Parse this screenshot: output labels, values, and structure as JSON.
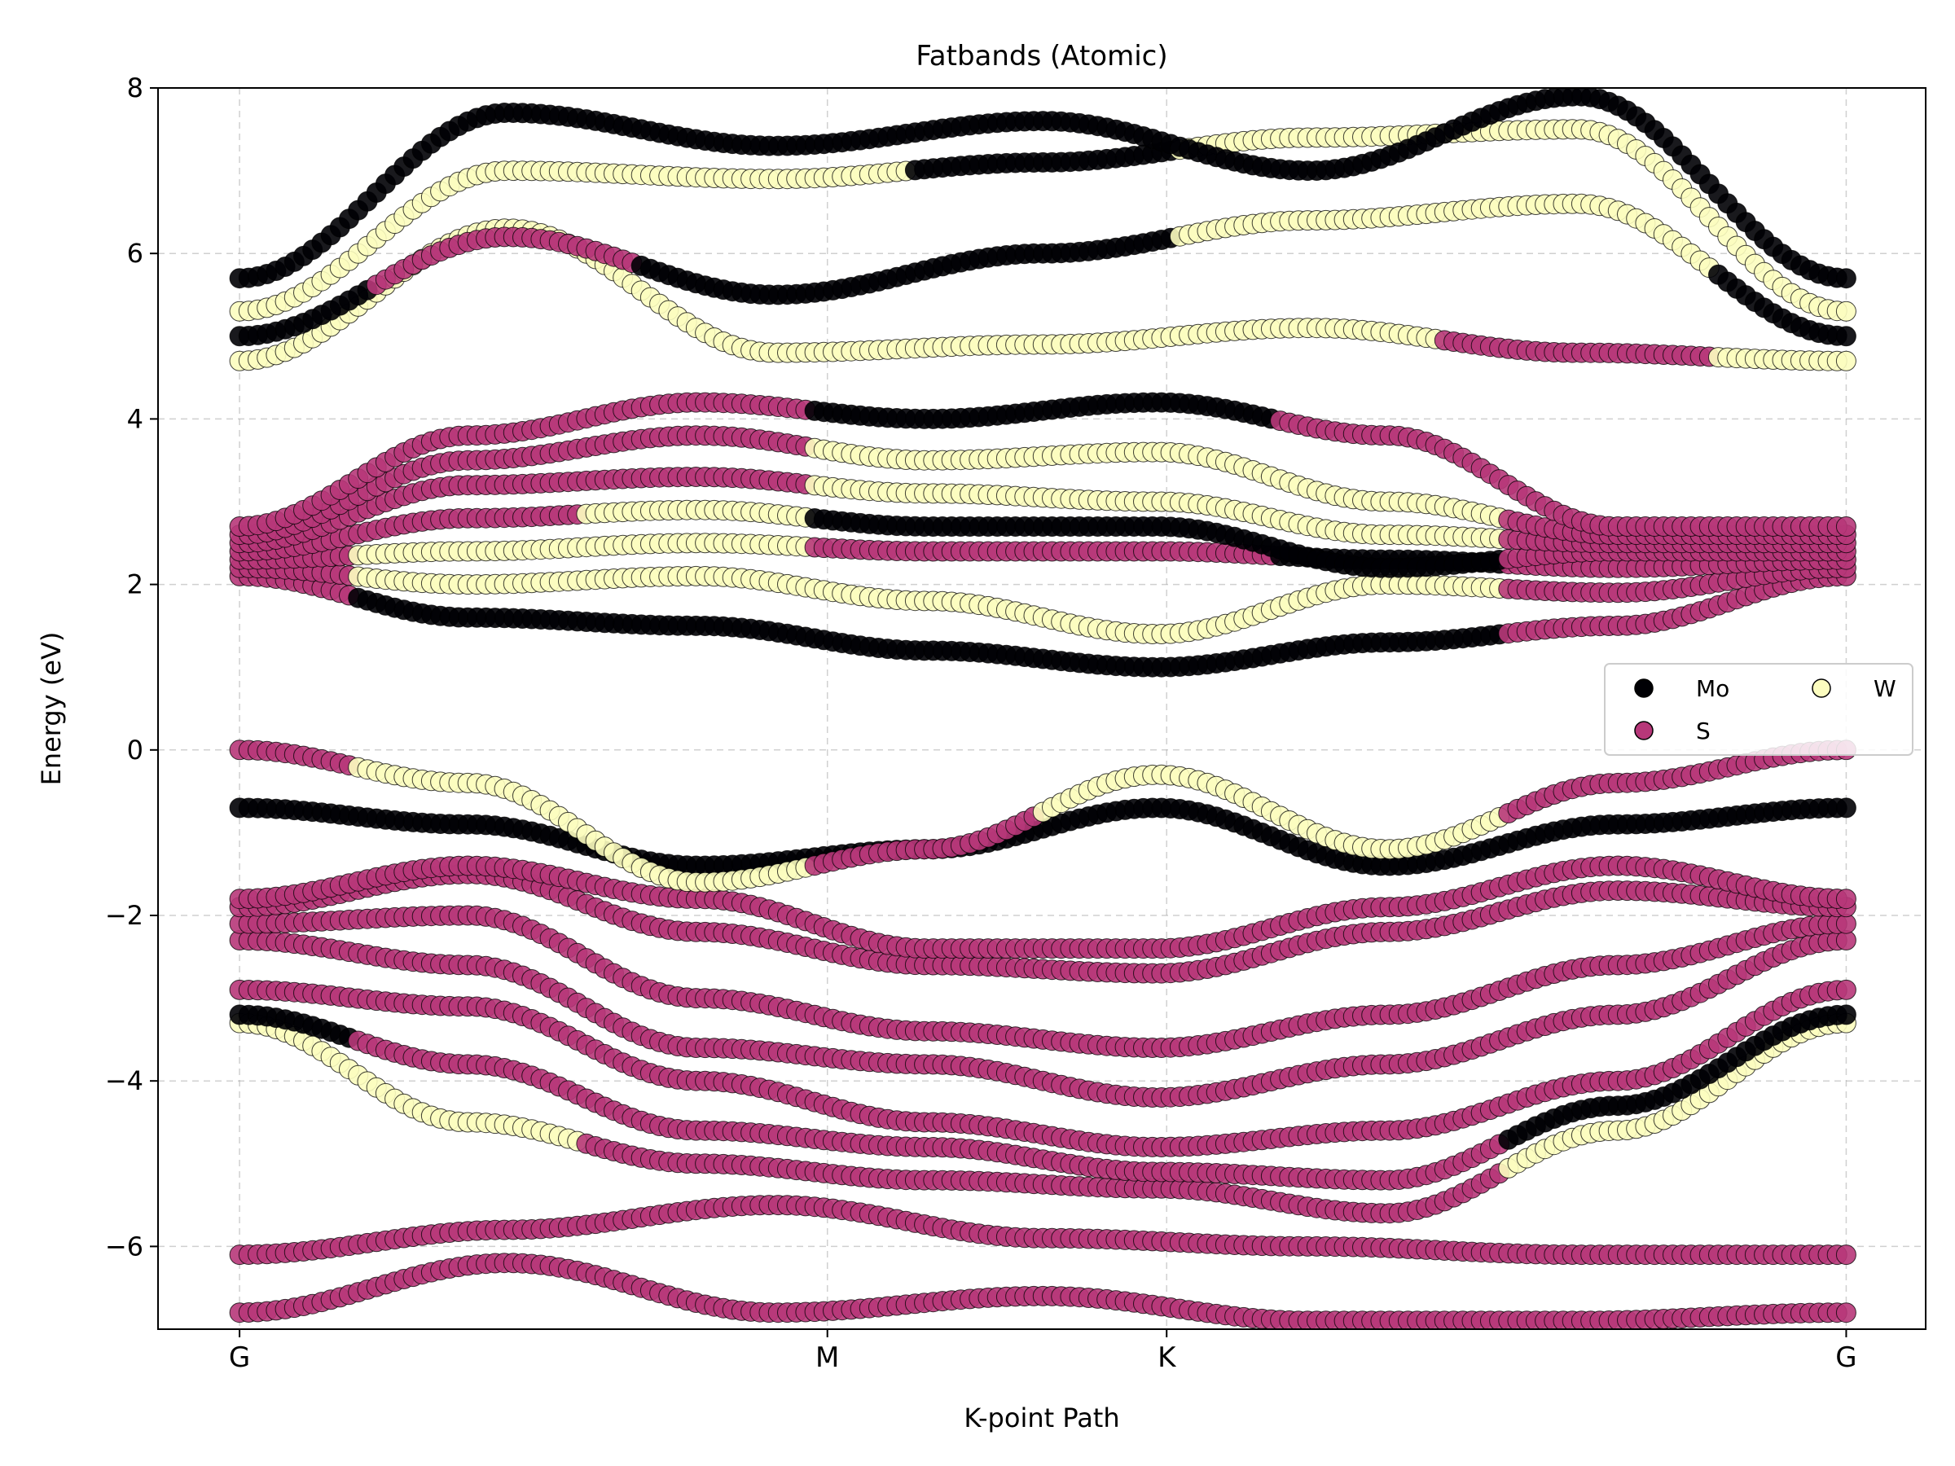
{
  "chart_data": {
    "type": "scatter",
    "title": "Fatbands (Atomic)",
    "xlabel": "K-point Path",
    "ylabel": "Energy (eV)",
    "ylim": [
      -7,
      8
    ],
    "y_ticks": [
      -6,
      -4,
      -2,
      0,
      2,
      4,
      6,
      8
    ],
    "y_tick_labels": [
      "−6",
      "−4",
      "−2",
      "0",
      "2",
      "4",
      "6",
      "8"
    ],
    "k_path": [
      {
        "label": "G",
        "k": 0.0
      },
      {
        "label": "M",
        "k": 0.577
      },
      {
        "label": "K",
        "k": 0.91
      },
      {
        "label": "G",
        "k": 1.577
      }
    ],
    "xlim": [
      -0.08,
      1.655
    ],
    "grid": true,
    "legend": {
      "position": "right",
      "columns": 2
    },
    "series": [
      {
        "name": "Mo",
        "color": "#000004"
      },
      {
        "name": "S",
        "color": "#b73779"
      },
      {
        "name": "W",
        "color": "#fcfdbf"
      }
    ],
    "bands": [
      {
        "e": [
          -6.8,
          -6.2,
          -6.8,
          -6.6,
          -6.9,
          -6.9,
          -6.8
        ],
        "c": [
          "S",
          "S",
          "S",
          "S",
          "S",
          "S",
          "S"
        ]
      },
      {
        "e": [
          -6.1,
          -5.8,
          -5.5,
          -5.9,
          -6.0,
          -6.1,
          -6.1
        ],
        "c": [
          "S",
          "S",
          "S",
          "S",
          "S",
          "S",
          "S"
        ]
      },
      {
        "e": [
          -3.3,
          -4.5,
          -5.0,
          -5.2,
          -5.3,
          -5.6,
          -4.6,
          -3.3
        ],
        "c": [
          "W",
          "W",
          "S",
          "S",
          "S",
          "S",
          "W",
          "W"
        ]
      },
      {
        "e": [
          -3.2,
          -3.8,
          -4.6,
          -4.8,
          -5.1,
          -5.2,
          -4.3,
          -3.2
        ],
        "c": [
          "Mo",
          "S",
          "S",
          "S",
          "S",
          "S",
          "Mo",
          "Mo"
        ]
      },
      {
        "e": [
          -2.9,
          -3.1,
          -4.0,
          -4.5,
          -4.8,
          -4.6,
          -4.0,
          -2.9
        ],
        "c": [
          "S",
          "S",
          "S",
          "S",
          "S",
          "S",
          "S",
          "S"
        ]
      },
      {
        "e": [
          -2.3,
          -2.6,
          -3.6,
          -3.8,
          -4.2,
          -3.8,
          -3.2,
          -2.3
        ],
        "c": [
          "S",
          "S",
          "S",
          "S",
          "S",
          "S",
          "S",
          "S"
        ]
      },
      {
        "e": [
          -2.1,
          -2.0,
          -3.0,
          -3.4,
          -3.6,
          -3.2,
          -2.6,
          -2.1
        ],
        "c": [
          "S",
          "S",
          "S",
          "S",
          "S",
          "S",
          "S",
          "S"
        ]
      },
      {
        "e": [
          -1.9,
          -1.5,
          -2.2,
          -2.6,
          -2.7,
          -2.2,
          -1.7,
          -1.9
        ],
        "c": [
          "S",
          "S",
          "S",
          "S",
          "S",
          "S",
          "S",
          "S"
        ]
      },
      {
        "e": [
          -1.8,
          -1.4,
          -1.8,
          -2.4,
          -2.4,
          -1.9,
          -1.4,
          -1.8
        ],
        "c": [
          "S",
          "S",
          "S",
          "S",
          "S",
          "S",
          "S",
          "S"
        ]
      },
      {
        "e": [
          -0.7,
          -0.9,
          -1.4,
          -1.2,
          -0.7,
          -1.4,
          -0.9,
          -0.7
        ],
        "c": [
          "Mo",
          "Mo",
          "Mo",
          "Mo",
          "Mo",
          "Mo",
          "Mo",
          "Mo"
        ]
      },
      {
        "e": [
          0.0,
          -0.4,
          -1.6,
          -1.2,
          -0.3,
          -1.2,
          -0.4,
          0.0
        ],
        "c": [
          "S",
          "W",
          "W",
          "S",
          "W",
          "W",
          "S",
          "S"
        ]
      },
      {
        "e": [
          2.1,
          1.6,
          1.5,
          1.2,
          1.0,
          1.3,
          1.5,
          2.1
        ],
        "c": [
          "S",
          "Mo",
          "Mo",
          "Mo",
          "Mo",
          "Mo",
          "S",
          "S"
        ]
      },
      {
        "e": [
          2.2,
          2.0,
          2.1,
          1.8,
          1.4,
          2.0,
          1.9,
          2.2
        ],
        "c": [
          "S",
          "W",
          "W",
          "W",
          "W",
          "W",
          "S",
          "S"
        ]
      },
      {
        "e": [
          2.3,
          2.4,
          2.5,
          2.4,
          2.4,
          2.3,
          2.2,
          2.3
        ],
        "c": [
          "S",
          "W",
          "W",
          "S",
          "S",
          "Mo",
          "S",
          "S"
        ]
      },
      {
        "e": [
          2.4,
          2.8,
          2.9,
          2.7,
          2.7,
          2.2,
          2.4,
          2.4
        ],
        "c": [
          "S",
          "S",
          "W",
          "Mo",
          "Mo",
          "Mo",
          "S",
          "S"
        ]
      },
      {
        "e": [
          2.5,
          3.2,
          3.3,
          3.1,
          3.0,
          2.6,
          2.5,
          2.5
        ],
        "c": [
          "S",
          "S",
          "S",
          "W",
          "W",
          "W",
          "S",
          "S"
        ]
      },
      {
        "e": [
          2.6,
          3.5,
          3.8,
          3.5,
          3.6,
          3.0,
          2.6,
          2.6
        ],
        "c": [
          "S",
          "S",
          "S",
          "W",
          "W",
          "W",
          "S",
          "S"
        ]
      },
      {
        "e": [
          2.7,
          3.8,
          4.2,
          4.0,
          4.2,
          3.8,
          2.7,
          2.7
        ],
        "c": [
          "S",
          "S",
          "S",
          "Mo",
          "Mo",
          "S",
          "S",
          "S"
        ]
      },
      {
        "e": [
          4.7,
          6.3,
          4.8,
          4.9,
          5.1,
          4.8,
          4.7
        ],
        "c": [
          "W",
          "W",
          "W",
          "W",
          "W",
          "S",
          "W"
        ]
      },
      {
        "e": [
          5.0,
          6.2,
          5.5,
          6.0,
          6.4,
          6.6,
          5.0
        ],
        "c": [
          "Mo",
          "S",
          "Mo",
          "Mo",
          "W",
          "W",
          "Mo"
        ]
      },
      {
        "e": [
          5.3,
          7.0,
          6.9,
          7.1,
          7.4,
          7.5,
          5.3
        ],
        "c": [
          "W",
          "W",
          "W",
          "Mo",
          "W",
          "W",
          "W"
        ]
      },
      {
        "e": [
          5.7,
          7.7,
          7.3,
          7.6,
          7.0,
          7.9,
          5.7
        ],
        "c": [
          "Mo",
          "Mo",
          "Mo",
          "Mo",
          "Mo",
          "Mo",
          "Mo"
        ]
      }
    ]
  }
}
